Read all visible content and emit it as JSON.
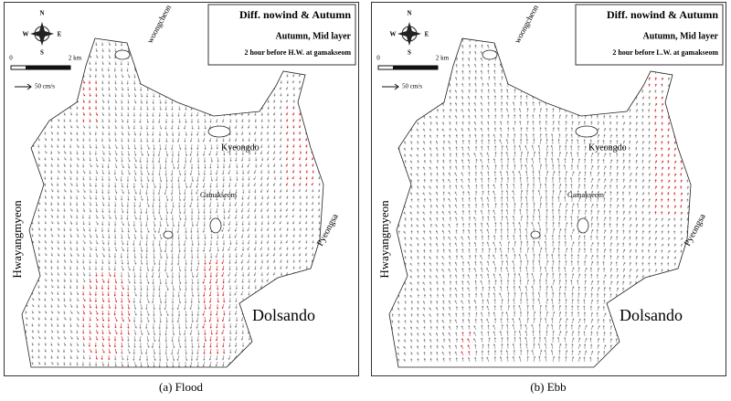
{
  "panels": [
    {
      "title": "Diff. nowind & Autumn",
      "subtitle": "Autumn, Mid layer",
      "note": "2 hour before H.W. at gamakseom",
      "compass": [
        "N",
        "S",
        "W",
        "E"
      ],
      "scale": [
        "0",
        "2 km"
      ],
      "speed": "50 cm/s",
      "places": [
        "woongcheon",
        "Kyeongdo",
        "Gamakseom",
        "Hwayangmyeon",
        "Pyeongsa",
        "Dolsando"
      ],
      "caption": "(a)  Flood"
    },
    {
      "title": "Diff. nowind & Autumn",
      "subtitle": "Autumn, Mid layer",
      "note": "2 hour before L.W. at gamakseom",
      "compass": [
        "N",
        "S",
        "W",
        "E"
      ],
      "scale": [
        "0",
        "2 km"
      ],
      "speed": "50 cm/s",
      "places": [
        "woongcheon",
        "Kyeongdo",
        "Gamakseom",
        "Hwayangmyeon",
        "Pyeongsa",
        "Dolsando"
      ],
      "caption": "(b)  Ebb"
    }
  ]
}
